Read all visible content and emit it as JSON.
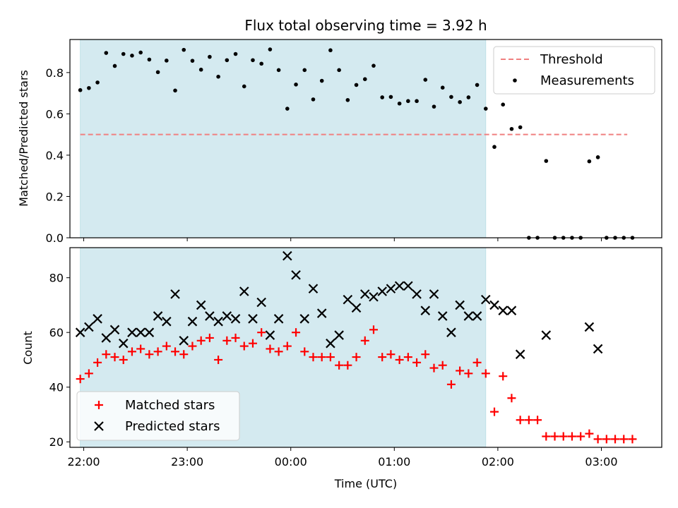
{
  "chart_data": {
    "title": "Flux total observing time = 3.92 h",
    "xlabel": "Time (UTC)",
    "x_unit": "UTC clock time (evening 21:xx-23:xx, then next day 00:xx-03:xx)",
    "xlim": [
      "21:52",
      "03:35"
    ],
    "x_ticks": [
      {
        "t": "22:00",
        "label": "22:00"
      },
      {
        "t": "23:00",
        "label": "23:00"
      },
      {
        "t": "00:00",
        "label": "00:00"
      },
      {
        "t": "01:00",
        "label": "01:00"
      },
      {
        "t": "02:00",
        "label": "02:00"
      },
      {
        "t": "03:00",
        "label": "03:00"
      }
    ],
    "observing_window": {
      "start": "21:58",
      "end": "01:53",
      "color": "#d4eaf0"
    },
    "panels": [
      {
        "type": "scatter",
        "ylabel": "Matched/Predicted stars",
        "ylim": [
          0,
          0.96
        ],
        "y_ticks": [
          0.0,
          0.2,
          0.4,
          0.6,
          0.8
        ],
        "y_tick_labels": [
          "0.0",
          "0.2",
          "0.4",
          "0.6",
          "0.8"
        ],
        "threshold": {
          "name": "Threshold",
          "value": 0.5,
          "from": "21:58",
          "to": "03:15",
          "color": "#f08080"
        },
        "series": [
          {
            "name": "Measurements",
            "marker": "dot",
            "color": "#000000",
            "points": [
              [
                "21:58",
                0.715
              ],
              [
                "22:03",
                0.725
              ],
              [
                "22:08",
                0.752
              ],
              [
                "22:13",
                0.895
              ],
              [
                "22:18",
                0.832
              ],
              [
                "22:23",
                0.89
              ],
              [
                "22:28",
                0.882
              ],
              [
                "22:33",
                0.897
              ],
              [
                "22:38",
                0.863
              ],
              [
                "22:43",
                0.802
              ],
              [
                "22:48",
                0.858
              ],
              [
                "22:53",
                0.713
              ],
              [
                "22:58",
                0.91
              ],
              [
                "23:03",
                0.857
              ],
              [
                "23:08",
                0.814
              ],
              [
                "23:13",
                0.876
              ],
              [
                "23:18",
                0.78
              ],
              [
                "23:23",
                0.86
              ],
              [
                "23:28",
                0.89
              ],
              [
                "23:33",
                0.733
              ],
              [
                "23:38",
                0.86
              ],
              [
                "23:43",
                0.843
              ],
              [
                "23:48",
                0.912
              ],
              [
                "23:53",
                0.812
              ],
              [
                "23:58",
                0.625
              ],
              [
                "00:03",
                0.742
              ],
              [
                "00:08",
                0.812
              ],
              [
                "00:13",
                0.67
              ],
              [
                "00:18",
                0.76
              ],
              [
                "00:23",
                0.908
              ],
              [
                "00:28",
                0.812
              ],
              [
                "00:33",
                0.667
              ],
              [
                "00:38",
                0.74
              ],
              [
                "00:43",
                0.768
              ],
              [
                "00:48",
                0.833
              ],
              [
                "00:53",
                0.68
              ],
              [
                "00:58",
                0.682
              ],
              [
                "01:03",
                0.65
              ],
              [
                "01:08",
                0.662
              ],
              [
                "01:13",
                0.662
              ],
              [
                "01:18",
                0.765
              ],
              [
                "01:23",
                0.635
              ],
              [
                "01:28",
                0.727
              ],
              [
                "01:33",
                0.682
              ],
              [
                "01:38",
                0.657
              ],
              [
                "01:43",
                0.68
              ],
              [
                "01:48",
                0.74
              ],
              [
                "01:53",
                0.625
              ],
              [
                "01:58",
                0.44
              ],
              [
                "02:03",
                0.645
              ],
              [
                "02:08",
                0.527
              ],
              [
                "02:13",
                0.535
              ],
              [
                "02:18",
                0.0
              ],
              [
                "02:23",
                0.0
              ],
              [
                "02:28",
                0.372
              ],
              [
                "02:33",
                0.0
              ],
              [
                "02:38",
                0.0
              ],
              [
                "02:43",
                0.0
              ],
              [
                "02:48",
                0.0
              ],
              [
                "02:53",
                0.37
              ],
              [
                "02:58",
                0.39
              ],
              [
                "03:03",
                0.0
              ],
              [
                "03:08",
                0.0
              ],
              [
                "03:13",
                0.0
              ],
              [
                "03:18",
                0.0
              ]
            ]
          }
        ],
        "legend": {
          "position": "upper right",
          "entries": [
            "Threshold",
            "Measurements"
          ]
        }
      },
      {
        "type": "scatter",
        "ylabel": "Count",
        "ylim": [
          18,
          91
        ],
        "y_ticks": [
          20,
          40,
          60,
          80
        ],
        "y_tick_labels": [
          "20",
          "40",
          "60",
          "80"
        ],
        "series": [
          {
            "name": "Matched stars",
            "marker": "plus",
            "color": "#ff0000",
            "points": [
              [
                "21:58",
                43
              ],
              [
                "22:03",
                45
              ],
              [
                "22:08",
                49
              ],
              [
                "22:13",
                52
              ],
              [
                "22:18",
                51
              ],
              [
                "22:23",
                50
              ],
              [
                "22:28",
                53
              ],
              [
                "22:33",
                54
              ],
              [
                "22:38",
                52
              ],
              [
                "22:43",
                53
              ],
              [
                "22:48",
                55
              ],
              [
                "22:53",
                53
              ],
              [
                "22:58",
                52
              ],
              [
                "23:03",
                55
              ],
              [
                "23:08",
                57
              ],
              [
                "23:13",
                58
              ],
              [
                "23:18",
                50
              ],
              [
                "23:23",
                57
              ],
              [
                "23:28",
                58
              ],
              [
                "23:33",
                55
              ],
              [
                "23:38",
                56
              ],
              [
                "23:43",
                60
              ],
              [
                "23:48",
                54
              ],
              [
                "23:53",
                53
              ],
              [
                "23:58",
                55
              ],
              [
                "00:03",
                60
              ],
              [
                "00:08",
                53
              ],
              [
                "00:13",
                51
              ],
              [
                "00:18",
                51
              ],
              [
                "00:23",
                51
              ],
              [
                "00:28",
                48
              ],
              [
                "00:33",
                48
              ],
              [
                "00:38",
                51
              ],
              [
                "00:43",
                57
              ],
              [
                "00:48",
                61
              ],
              [
                "00:53",
                51
              ],
              [
                "00:58",
                52
              ],
              [
                "01:03",
                50
              ],
              [
                "01:08",
                51
              ],
              [
                "01:13",
                49
              ],
              [
                "01:18",
                52
              ],
              [
                "01:23",
                47
              ],
              [
                "01:28",
                48
              ],
              [
                "01:33",
                41
              ],
              [
                "01:38",
                46
              ],
              [
                "01:43",
                45
              ],
              [
                "01:48",
                49
              ],
              [
                "01:53",
                45
              ],
              [
                "01:58",
                31
              ],
              [
                "02:03",
                44
              ],
              [
                "02:08",
                36
              ],
              [
                "02:13",
                28
              ],
              [
                "02:18",
                28
              ],
              [
                "02:23",
                28
              ],
              [
                "02:28",
                22
              ],
              [
                "02:33",
                22
              ],
              [
                "02:38",
                22
              ],
              [
                "02:43",
                22
              ],
              [
                "02:48",
                22
              ],
              [
                "02:53",
                23
              ],
              [
                "02:58",
                21
              ],
              [
                "03:03",
                21
              ],
              [
                "03:08",
                21
              ],
              [
                "03:13",
                21
              ],
              [
                "03:18",
                21
              ]
            ]
          },
          {
            "name": "Predicted stars",
            "marker": "x",
            "color": "#000000",
            "points": [
              [
                "21:58",
                60
              ],
              [
                "22:03",
                62
              ],
              [
                "22:08",
                65
              ],
              [
                "22:13",
                58
              ],
              [
                "22:18",
                61
              ],
              [
                "22:23",
                56
              ],
              [
                "22:28",
                60
              ],
              [
                "22:33",
                60
              ],
              [
                "22:38",
                60
              ],
              [
                "22:43",
                66
              ],
              [
                "22:48",
                64
              ],
              [
                "22:53",
                74
              ],
              [
                "22:58",
                57
              ],
              [
                "23:03",
                64
              ],
              [
                "23:08",
                70
              ],
              [
                "23:13",
                66
              ],
              [
                "23:18",
                64
              ],
              [
                "23:23",
                66
              ],
              [
                "23:28",
                65
              ],
              [
                "23:33",
                75
              ],
              [
                "23:38",
                65
              ],
              [
                "23:43",
                71
              ],
              [
                "23:48",
                59
              ],
              [
                "23:53",
                65
              ],
              [
                "23:58",
                88
              ],
              [
                "00:03",
                81
              ],
              [
                "00:08",
                65
              ],
              [
                "00:13",
                76
              ],
              [
                "00:18",
                67
              ],
              [
                "00:23",
                56
              ],
              [
                "00:28",
                59
              ],
              [
                "00:33",
                72
              ],
              [
                "00:38",
                69
              ],
              [
                "00:43",
                74
              ],
              [
                "00:48",
                73
              ],
              [
                "00:53",
                75
              ],
              [
                "00:58",
                76
              ],
              [
                "01:03",
                77
              ],
              [
                "01:08",
                77
              ],
              [
                "01:13",
                74
              ],
              [
                "01:18",
                68
              ],
              [
                "01:23",
                74
              ],
              [
                "01:28",
                66
              ],
              [
                "01:33",
                60
              ],
              [
                "01:38",
                70
              ],
              [
                "01:43",
                66
              ],
              [
                "01:48",
                66
              ],
              [
                "01:53",
                72
              ],
              [
                "01:58",
                70
              ],
              [
                "02:03",
                68
              ],
              [
                "02:08",
                68
              ],
              [
                "02:13",
                52
              ],
              [
                "02:28",
                59
              ],
              [
                "02:53",
                62
              ],
              [
                "02:58",
                54
              ]
            ]
          }
        ],
        "legend": {
          "position": "lower left",
          "entries": [
            "Matched stars",
            "Predicted stars"
          ]
        }
      }
    ]
  }
}
